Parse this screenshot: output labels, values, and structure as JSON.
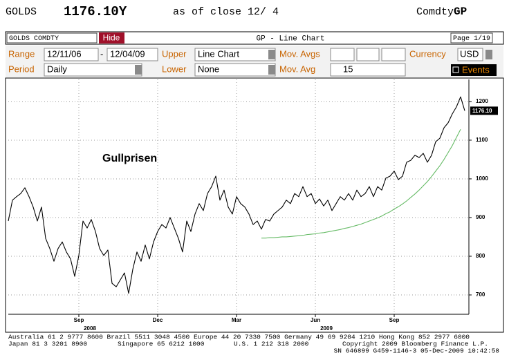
{
  "header": {
    "ticker": "GOLDS",
    "price": "1176.10Y",
    "as_of": "as of close 12/ 4",
    "market": "Comdty",
    "function": "GP"
  },
  "toolbar": {
    "security": "GOLDS COMDTY",
    "hide": "Hide",
    "title": "GP - Line Chart",
    "page": "Page 1/19"
  },
  "form": {
    "range_label": "Range",
    "start": "12/11/06",
    "dash": "-",
    "end": "12/04/09",
    "upper_label": "Upper",
    "upper": "Line Chart",
    "mov_avgs_label": "Mov. Avgs",
    "currency_label": "Currency",
    "currency": "USD",
    "period_label": "Period",
    "period": "Daily",
    "lower_label": "Lower",
    "lower": "None",
    "mov_avg_label": "Mov. Avg",
    "mov_avg": "15",
    "events": "Events"
  },
  "chart_data": {
    "type": "line",
    "annotation": "Gullprisen",
    "last_label": "1176.10",
    "categories": [
      null,
      null,
      null,
      null,
      null,
      null,
      null,
      null,
      null,
      null,
      null,
      null,
      null,
      null,
      null,
      null,
      null,
      "Sep",
      null,
      null,
      null,
      null,
      null,
      null,
      null,
      null,
      null,
      null,
      null,
      null,
      null,
      null,
      null,
      null,
      null,
      null,
      "Dec",
      null,
      null,
      null,
      null,
      null,
      null,
      null,
      null,
      null,
      null,
      null,
      null,
      null,
      null,
      null,
      null,
      null,
      null,
      "Mar",
      null,
      null,
      null,
      null,
      null,
      null,
      null,
      null,
      null,
      null,
      null,
      null,
      null,
      null,
      null,
      null,
      null,
      null,
      "Jun",
      null,
      null,
      null,
      null,
      null,
      null,
      null,
      null,
      null,
      null,
      null,
      null,
      null,
      null,
      null,
      null,
      null,
      null,
      "Sep",
      null,
      null,
      null,
      null,
      null,
      null,
      null,
      null,
      null,
      null,
      null,
      null,
      null,
      null,
      null,
      null,
      null
    ],
    "year_labels": [
      null,
      null,
      null,
      null,
      null,
      null,
      null,
      null,
      null,
      null,
      null,
      null,
      null,
      null,
      null,
      null,
      null,
      "2008",
      null,
      null,
      null,
      null,
      null,
      null,
      null,
      null,
      null,
      null,
      null,
      null,
      null,
      null,
      null,
      null,
      null,
      null,
      null,
      null,
      null,
      null,
      null,
      null,
      null,
      null,
      null,
      null,
      null,
      null,
      null,
      null,
      null,
      null,
      null,
      null,
      null,
      null,
      null,
      null,
      null,
      null,
      null,
      null,
      null,
      null,
      null,
      null,
      null,
      null,
      null,
      null,
      null,
      null,
      null,
      null,
      "2009",
      null,
      null,
      null,
      null,
      null,
      null,
      null,
      null,
      null,
      null,
      null,
      null,
      null,
      null,
      null,
      null,
      null,
      null,
      null,
      null,
      null,
      null,
      null,
      null,
      null,
      null,
      null,
      null,
      null,
      null,
      null,
      null,
      null,
      null,
      null,
      null,
      null,
      null,
      null,
      null
    ],
    "series": [
      {
        "color": "#000000",
        "values": [
          891,
          945,
          954,
          962,
          977,
          954,
          927,
          891,
          927,
          846,
          820,
          787,
          820,
          837,
          811,
          793,
          748,
          802,
          891,
          873,
          895,
          864,
          820,
          802,
          816,
          730,
          721,
          739,
          757,
          704,
          766,
          811,
          787,
          829,
          793,
          837,
          864,
          882,
          873,
          900,
          873,
          846,
          811,
          891,
          864,
          909,
          936,
          918,
          962,
          980,
          1007,
          945,
          971,
          927,
          909,
          954,
          936,
          927,
          909,
          882,
          891,
          870,
          895,
          891,
          909,
          918,
          927,
          945,
          936,
          962,
          954,
          980,
          954,
          962,
          936,
          948,
          930,
          945,
          918,
          936,
          954,
          945,
          962,
          945,
          971,
          954,
          962,
          980,
          954,
          980,
          971,
          1002,
          1007,
          1020,
          998,
          1007,
          1043,
          1048,
          1061,
          1055,
          1066,
          1043,
          1061,
          1096,
          1105,
          1132,
          1145,
          1168,
          1186,
          1212,
          1176.1
        ]
      },
      {
        "color": "#66bb66",
        "values": [
          null,
          null,
          null,
          null,
          null,
          null,
          null,
          null,
          null,
          null,
          null,
          null,
          null,
          null,
          null,
          null,
          null,
          null,
          null,
          null,
          null,
          null,
          null,
          null,
          null,
          null,
          null,
          null,
          null,
          null,
          null,
          null,
          null,
          null,
          null,
          null,
          null,
          null,
          null,
          null,
          null,
          null,
          null,
          null,
          null,
          null,
          null,
          null,
          null,
          null,
          null,
          null,
          null,
          null,
          null,
          null,
          null,
          null,
          null,
          null,
          null,
          847,
          847,
          848,
          848,
          849,
          850,
          850,
          851,
          852,
          853,
          854,
          856,
          857,
          858,
          860,
          861,
          863,
          865,
          867,
          869,
          872,
          874,
          877,
          880,
          883,
          887,
          891,
          895,
          899,
          904,
          910,
          915,
          922,
          928,
          935,
          943,
          952,
          961,
          971,
          982,
          993,
          1006,
          1020,
          1034,
          1050,
          1068,
          1086,
          1107,
          1128,
          null
        ]
      }
    ],
    "ylim": [
      650,
      1257
    ],
    "yticks": [
      700,
      800,
      900,
      1000,
      1100,
      1200
    ],
    "grid": true
  },
  "footer": {
    "line1": "Australia 61 2 9777 8600 Brazil 5511 3048 4500 Europe 44 20 7330 7500 Germany 49 69 9204 1210 Hong Kong 852 2977 6000",
    "japan": "Japan 81 3 3201 8900",
    "singapore": "Singapore 65 6212 1000",
    "us": "U.S. 1 212 318 2000",
    "copyright": "Copyright 2009 Bloomberg Finance L.P.",
    "serial": "SN 646899 G459-1146-3 05-Dec-2009 10:42:58"
  }
}
